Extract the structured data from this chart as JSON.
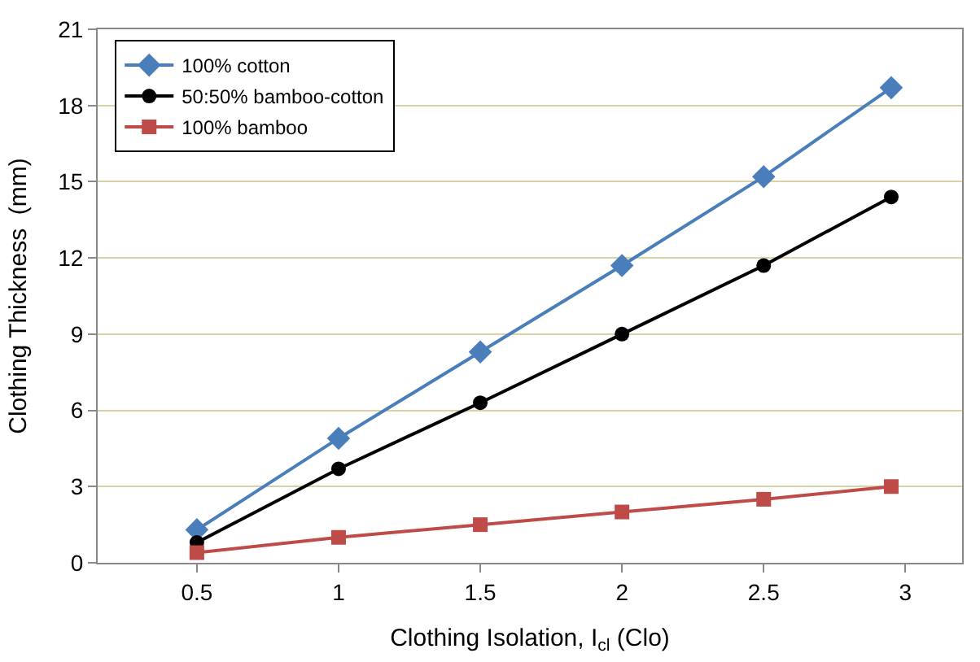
{
  "chart_data": {
    "type": "line",
    "xlabel": "Clothing Isolation, I$_{cl}$ (Clo)",
    "ylabel": "Clothing Thickness  (mm)",
    "x": [
      0.5,
      1,
      1.5,
      2,
      2.5,
      2.95
    ],
    "series": [
      {
        "name": "100% cotton",
        "color": "#4a7ebb",
        "values": [
          1.3,
          4.9,
          8.3,
          11.7,
          15.2,
          18.7
        ],
        "marker": "diamond"
      },
      {
        "name": "50:50% bamboo-cotton",
        "color": "#000000",
        "values": [
          0.8,
          3.7,
          6.3,
          9.0,
          11.7,
          14.4
        ],
        "marker": "circle"
      },
      {
        "name": "100% bamboo",
        "color": "#be4b48",
        "values": [
          0.4,
          1.0,
          1.5,
          2.0,
          2.5,
          3.0
        ],
        "marker": "square"
      }
    ],
    "xlim": [
      0.15,
      3.2
    ],
    "xticks": [
      0.5,
      1,
      1.5,
      2,
      2.5,
      3
    ],
    "ylim": [
      0,
      21
    ],
    "yticks": [
      0,
      3,
      6,
      9,
      12,
      15,
      18,
      21
    ],
    "grid": "y",
    "legend": "top left"
  }
}
